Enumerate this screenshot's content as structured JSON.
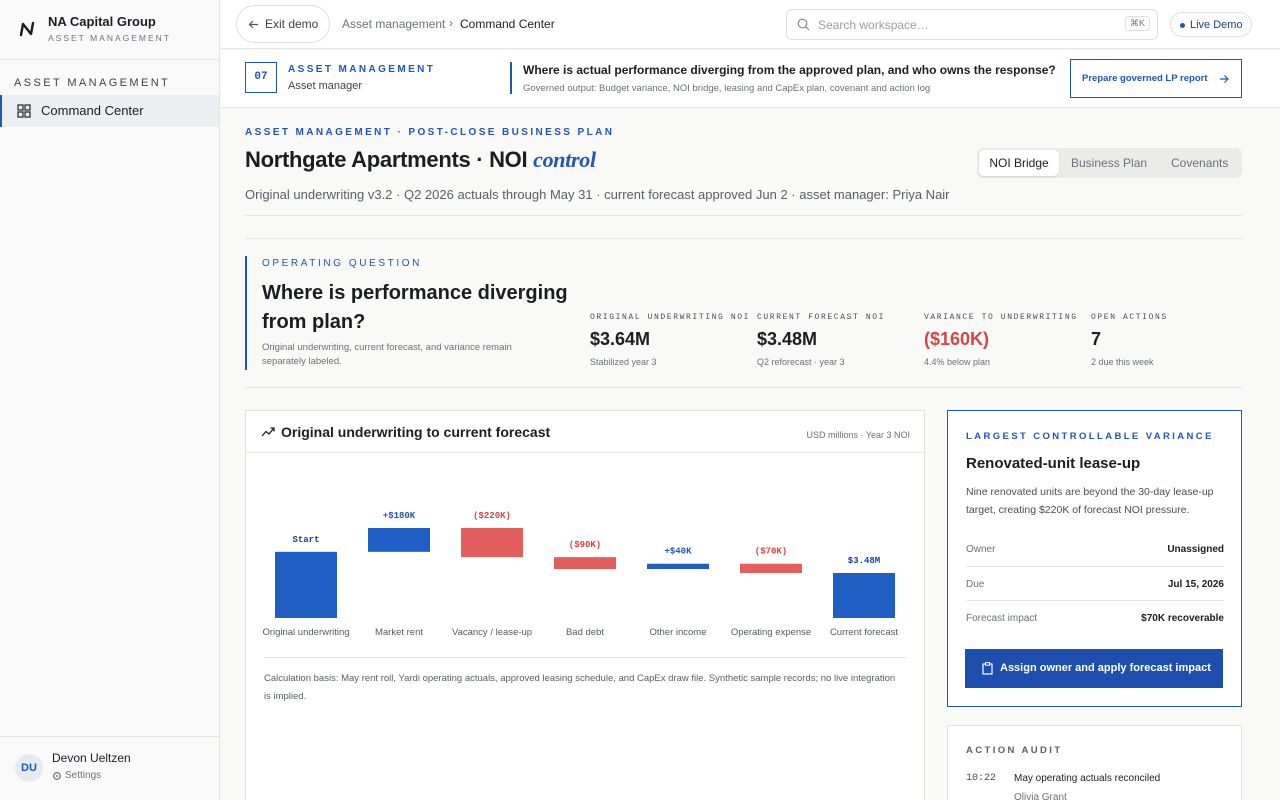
{
  "sidebar": {
    "org_name": "NA Capital Group",
    "org_sub": "ASSET MANAGEMENT",
    "section": "ASSET MANAGEMENT",
    "nav": [
      "Command Center"
    ],
    "user": {
      "initials": "DU",
      "name": "Devon Ueltzen",
      "settings": "Settings"
    }
  },
  "topbar": {
    "exit": "Exit demo",
    "breadcrumb": [
      "Asset management",
      "Command Center"
    ],
    "search": "Search workspace…",
    "shortcut": "⌘K",
    "live": "Live Demo"
  },
  "context": {
    "step": "07",
    "kicker": "ASSET MANAGEMENT",
    "role": "Asset manager",
    "question": "Where is actual performance diverging from the approved plan, and who owns the response?",
    "question_sub": "Governed output: Budget variance, NOI bridge, leasing and CapEx plan, covenant and action log",
    "action": "Prepare governed LP report"
  },
  "header": {
    "eyebrow": "ASSET MANAGEMENT · POST-CLOSE BUSINESS PLAN",
    "title": "Northgate Apartments · NOI",
    "title_em": "control",
    "meta": "Original underwriting v3.2 · Q2 2026 actuals through May 31 · current forecast approved Jun 2 · asset manager: Priya Nair",
    "tabs": [
      "NOI Bridge",
      "Business Plan",
      "Covenants"
    ]
  },
  "question_panel": {
    "kicker": "OPERATING QUESTION",
    "heading": "Where is performance diverging from plan?",
    "note": "Original underwriting, current forecast, and variance remain separately labeled."
  },
  "kpis": [
    {
      "label": "ORIGINAL UNDERWRITING NOI",
      "value": "$3.64M",
      "note": "Stabilized year 3"
    },
    {
      "label": "CURRENT FORECAST NOI",
      "value": "$3.48M",
      "note": "Q2 reforecast · year 3"
    },
    {
      "label": "VARIANCE TO UNDERWRITING",
      "value": "($160K)",
      "note": "4.4% below plan"
    },
    {
      "label": "OPEN ACTIONS",
      "value": "7",
      "note": "2 due this week"
    }
  ],
  "chart_data": {
    "type": "waterfall",
    "title": "Original underwriting to current forecast",
    "subtitle": "USD millions · Year 3 NOI",
    "categories": [
      "Original underwriting",
      "Market rent",
      "Vacancy / lease-up",
      "Bad debt",
      "Other income",
      "Operating expense",
      "Current forecast"
    ],
    "measures": [
      "absolute",
      "relative",
      "relative",
      "relative",
      "relative",
      "relative",
      "total"
    ],
    "values": [
      3.64,
      0.18,
      -0.22,
      -0.09,
      0.04,
      -0.07,
      3.48
    ],
    "value_labels": [
      "Start",
      "+$180K",
      "($220K)",
      "($90K)",
      "+$40K",
      "($70K)",
      "$3.48M"
    ],
    "colors": {
      "total": "#1f5fc4",
      "increase": "#1f5fc4",
      "decrease": "#e35f5f"
    },
    "note": "Calculation basis: May rent roll, Yardi operating actuals, approved leasing schedule, and CapEx draw file. Synthetic sample records; no live integration is implied."
  },
  "variance_card": {
    "kicker": "LARGEST CONTROLLABLE VARIANCE",
    "title": "Renovated-unit lease-up",
    "body": "Nine renovated units are beyond the 30-day lease-up target, creating $220K of forecast NOI pressure.",
    "rows": [
      {
        "label": "Owner",
        "value": "Unassigned"
      },
      {
        "label": "Due",
        "value": "Jul 15, 2026"
      },
      {
        "label": "Forecast impact",
        "value": "$70K recoverable"
      }
    ],
    "button": "Assign owner and apply forecast impact"
  },
  "audit": {
    "kicker": "ACTION AUDIT",
    "entries": [
      {
        "time": "10:22",
        "text": "May operating actuals reconciled",
        "who": "Olivia Grant"
      }
    ]
  }
}
